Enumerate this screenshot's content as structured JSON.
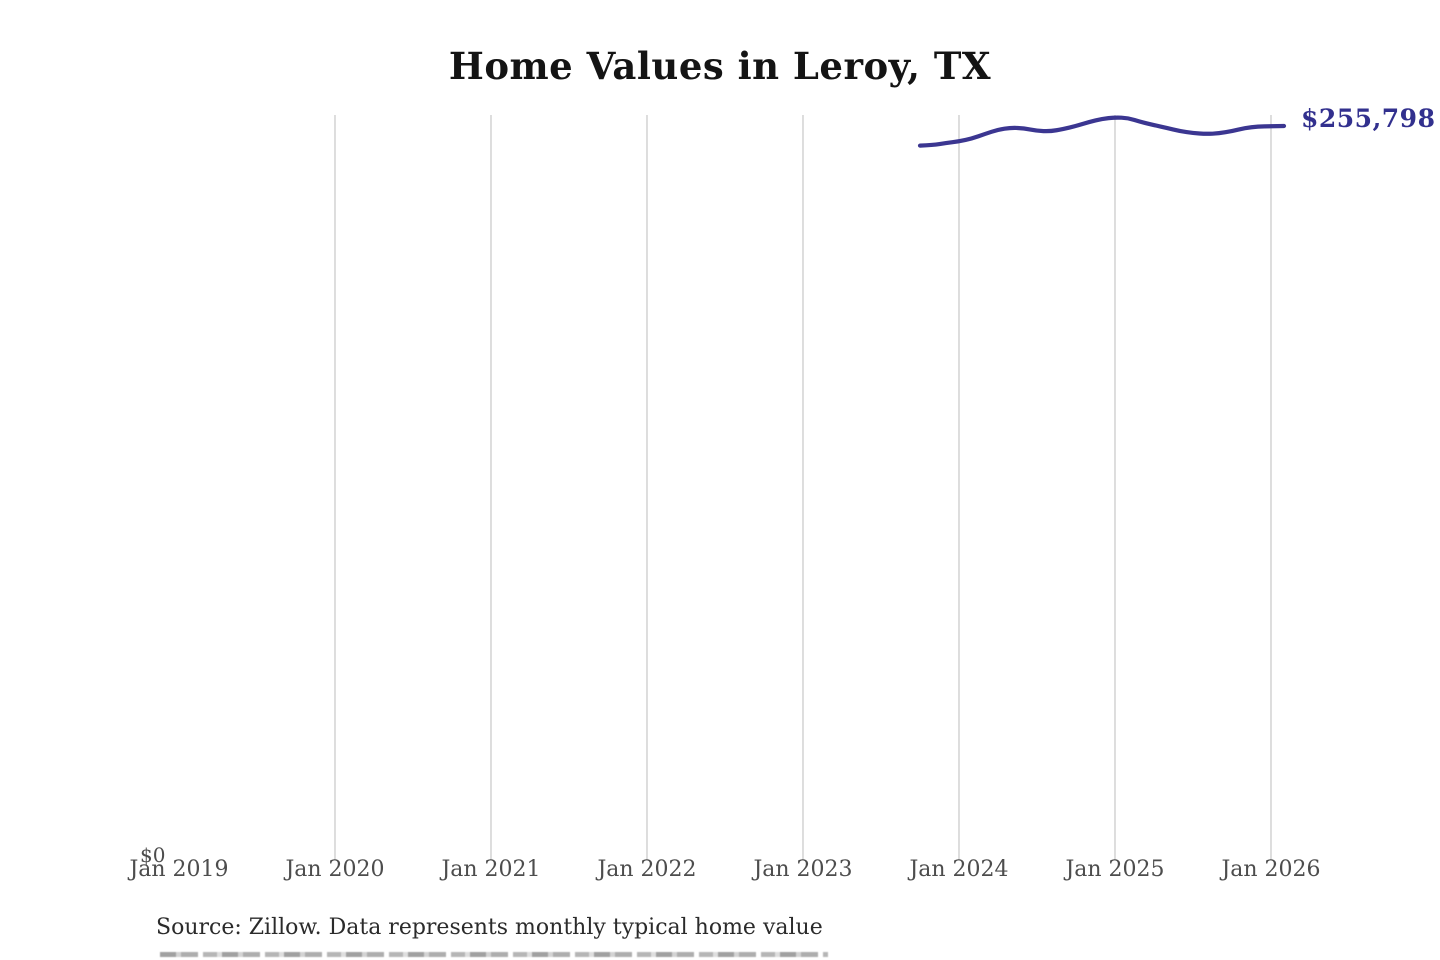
{
  "title": "Home Values in Leroy, TX",
  "source_note": "Source: Zillow. Data represents monthly typical home value",
  "latest_value_label": "$255,798",
  "y_axis": {
    "zero_label": "$0"
  },
  "colors": {
    "line": "#3b3691",
    "latest_value_label": "#32308e",
    "gridline": "#cbcbcb",
    "tick_text": "#4d4d4d",
    "title_text": "#141414",
    "source_text": "#2b2b2b",
    "background": "#ffffff"
  },
  "chart_data": {
    "type": "line",
    "title": "Home Values in Leroy, TX",
    "xlabel": "",
    "ylabel": "",
    "ylim": [
      0,
      260000
    ],
    "grid": "vertical-only",
    "legend": "none",
    "x_ticks": [
      "Jan 2019",
      "Jan 2020",
      "Jan 2021",
      "Jan 2022",
      "Jan 2023",
      "Jan 2024",
      "Jan 2025",
      "Jan 2026"
    ],
    "x_ticks_with_gridline": [
      "Jan 2020",
      "Jan 2021",
      "Jan 2022",
      "Jan 2023",
      "Jan 2024",
      "Jan 2025",
      "Jan 2026"
    ],
    "y_tick_labels": [
      "$0"
    ],
    "end_point_annotation": "$255,798",
    "series": [
      {
        "name": "Monthly typical home value",
        "points": [
          {
            "date": "2023-10",
            "value": 248900
          },
          {
            "date": "2023-11",
            "value": 249100
          },
          {
            "date": "2023-12",
            "value": 249800
          },
          {
            "date": "2024-01",
            "value": 250400
          },
          {
            "date": "2024-02",
            "value": 251400
          },
          {
            "date": "2024-03",
            "value": 253000
          },
          {
            "date": "2024-04",
            "value": 254500
          },
          {
            "date": "2024-05",
            "value": 255200
          },
          {
            "date": "2024-06",
            "value": 255000
          },
          {
            "date": "2024-07",
            "value": 254100
          },
          {
            "date": "2024-08",
            "value": 253900
          },
          {
            "date": "2024-09",
            "value": 254700
          },
          {
            "date": "2024-10",
            "value": 255800
          },
          {
            "date": "2024-11",
            "value": 257200
          },
          {
            "date": "2024-12",
            "value": 258300
          },
          {
            "date": "2025-01",
            "value": 258800
          },
          {
            "date": "2025-02",
            "value": 258600
          },
          {
            "date": "2025-03",
            "value": 257200
          },
          {
            "date": "2025-04",
            "value": 256100
          },
          {
            "date": "2025-05",
            "value": 255100
          },
          {
            "date": "2025-06",
            "value": 254000
          },
          {
            "date": "2025-07",
            "value": 253300
          },
          {
            "date": "2025-08",
            "value": 253000
          },
          {
            "date": "2025-09",
            "value": 253200
          },
          {
            "date": "2025-10",
            "value": 254000
          },
          {
            "date": "2025-11",
            "value": 255100
          },
          {
            "date": "2025-12",
            "value": 255600
          },
          {
            "date": "2026-01",
            "value": 255700
          },
          {
            "date": "2026-02",
            "value": 255798
          }
        ]
      }
    ]
  }
}
